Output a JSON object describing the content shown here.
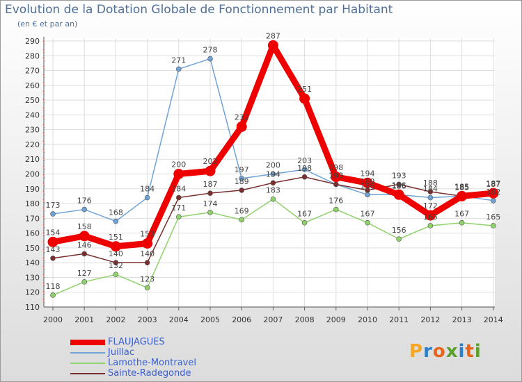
{
  "title": "Evolution de la Dotation Globale de Fonctionnement par Habitant",
  "subtitle": "(en € et par an)",
  "logo": {
    "text": "Proxiti",
    "colors": [
      "#f5a623",
      "#2a7fc9",
      "#e8641b",
      "#5aa02c",
      "#2a7fc9",
      "#e8641b",
      "#5aa02c"
    ]
  },
  "chart_data": {
    "type": "line",
    "title": "Evolution de la Dotation Globale de Fonctionnement par Habitant",
    "subtitle": "(en € et par an)",
    "xlabel": "",
    "ylabel": "",
    "ylim": [
      110,
      290
    ],
    "yticks": [
      110,
      120,
      130,
      140,
      150,
      160,
      170,
      180,
      190,
      200,
      210,
      220,
      230,
      240,
      250,
      260,
      270,
      280,
      290
    ],
    "categories": [
      "2000",
      "2001",
      "2002",
      "2003",
      "2004",
      "2005",
      "2006",
      "2007",
      "2008",
      "2009",
      "2010",
      "2011",
      "2012",
      "2013",
      "2014"
    ],
    "legend_position": "bottom-left",
    "series": [
      {
        "name": "FLAUJAGUES",
        "color": "#ee0000",
        "emphasis": true,
        "values": [
          154,
          158,
          151,
          153,
          200,
          202,
          232,
          287,
          251,
          198,
          194,
          186,
          172,
          185,
          187
        ]
      },
      {
        "name": "Juillac",
        "color": "#6fa3d6",
        "emphasis": false,
        "values": [
          173,
          176,
          168,
          184,
          271,
          278,
          197,
          200,
          203,
          193,
          186,
          186,
          184,
          185,
          182
        ]
      },
      {
        "name": "Lamothe-Montravel",
        "color": "#8fd16a",
        "emphasis": false,
        "values": [
          118,
          127,
          132,
          123,
          171,
          174,
          169,
          183,
          167,
          176,
          167,
          156,
          165,
          167,
          165
        ]
      },
      {
        "name": "Sainte-Radegonde",
        "color": "#7a2e2e",
        "emphasis": false,
        "values": [
          143,
          146,
          140,
          140,
          184,
          187,
          189,
          194,
          198,
          193,
          189,
          193,
          188,
          185,
          187
        ]
      }
    ]
  }
}
